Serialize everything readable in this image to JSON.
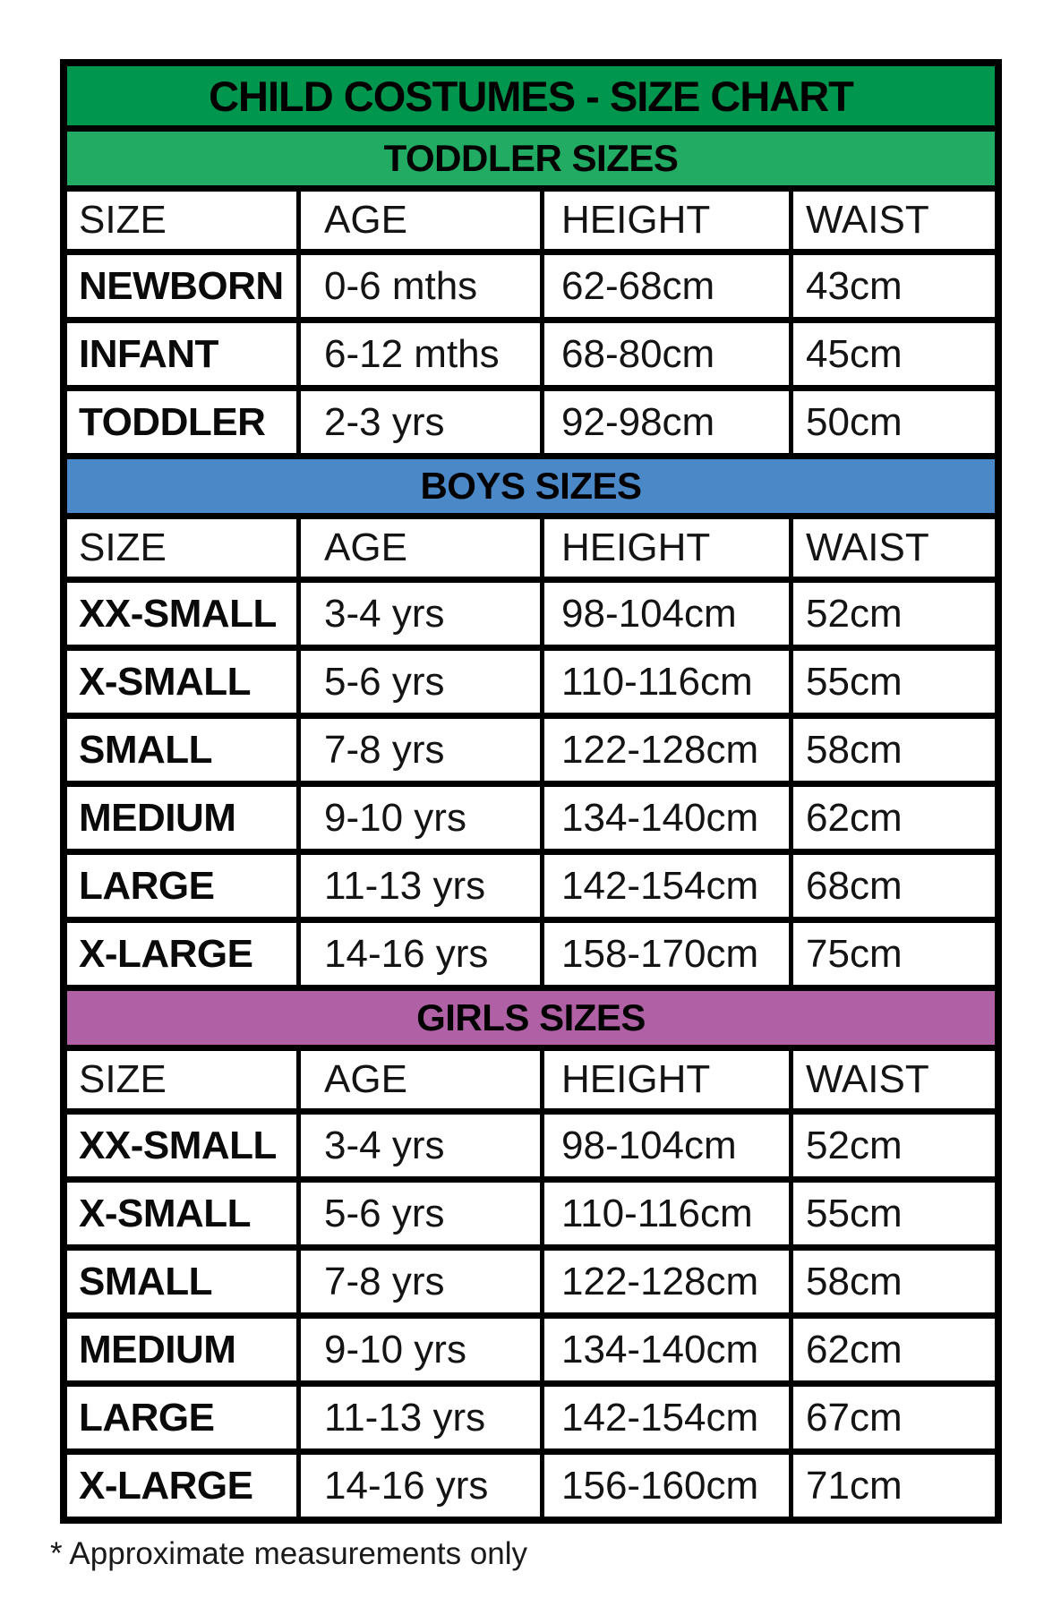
{
  "title": "CHILD COSTUMES - SIZE CHART",
  "footnote": "* Approximate measurements only",
  "columns": [
    "SIZE",
    "AGE",
    "HEIGHT",
    "WAIST"
  ],
  "colors": {
    "title_bg": "#00964E",
    "toddler_bg": "#21AB63",
    "boys_bg": "#4A88C8",
    "girls_bg": "#B061A5",
    "border": "#000000"
  },
  "sections": [
    {
      "label": "TODDLER SIZES",
      "rows": [
        {
          "size": "NEWBORN",
          "age": "0-6 mths",
          "height": "62-68cm",
          "waist": "43cm"
        },
        {
          "size": "INFANT",
          "age": "6-12 mths",
          "height": "68-80cm",
          "waist": "45cm"
        },
        {
          "size": "TODDLER",
          "age": "2-3 yrs",
          "height": "92-98cm",
          "waist": "50cm"
        }
      ]
    },
    {
      "label": "BOYS SIZES",
      "rows": [
        {
          "size": "XX-SMALL",
          "age": "3-4 yrs",
          "height": "98-104cm",
          "waist": "52cm"
        },
        {
          "size": "X-SMALL",
          "age": "5-6 yrs",
          "height": "110-116cm",
          "waist": "55cm"
        },
        {
          "size": "SMALL",
          "age": "7-8 yrs",
          "height": "122-128cm",
          "waist": "58cm"
        },
        {
          "size": "MEDIUM",
          "age": "9-10 yrs",
          "height": "134-140cm",
          "waist": "62cm"
        },
        {
          "size": "LARGE",
          "age": "11-13 yrs",
          "height": "142-154cm",
          "waist": "68cm"
        },
        {
          "size": "X-LARGE",
          "age": "14-16 yrs",
          "height": "158-170cm",
          "waist": "75cm"
        }
      ]
    },
    {
      "label": "GIRLS SIZES",
      "rows": [
        {
          "size": "XX-SMALL",
          "age": "3-4 yrs",
          "height": "98-104cm",
          "waist": "52cm"
        },
        {
          "size": "X-SMALL",
          "age": "5-6 yrs",
          "height": "110-116cm",
          "waist": "55cm"
        },
        {
          "size": "SMALL",
          "age": "7-8 yrs",
          "height": "122-128cm",
          "waist": "58cm"
        },
        {
          "size": "MEDIUM",
          "age": "9-10 yrs",
          "height": "134-140cm",
          "waist": "62cm"
        },
        {
          "size": "LARGE",
          "age": "11-13 yrs",
          "height": "142-154cm",
          "waist": "67cm"
        },
        {
          "size": "X-LARGE",
          "age": "14-16 yrs",
          "height": "156-160cm",
          "waist": "71cm"
        }
      ]
    }
  ]
}
